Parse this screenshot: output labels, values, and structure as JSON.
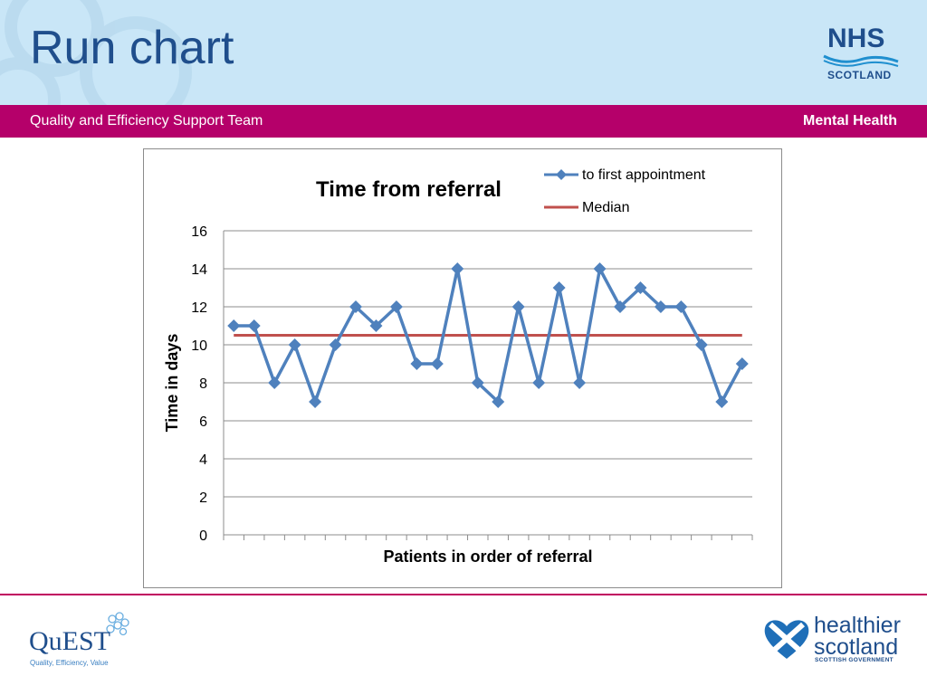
{
  "slide": {
    "title": "Run chart",
    "bar_left": "Quality and Efficiency Support Team",
    "bar_right": "Mental Health"
  },
  "logos": {
    "nhs_word": "NHS",
    "nhs_sub": "SCOTLAND",
    "quest_word": "QuEST",
    "quest_tagline": "Quality, Efficiency, Value",
    "hs_line1": "healthier",
    "hs_line2": "scotland",
    "hs_gov": "SCOTTISH GOVERNMENT"
  },
  "colors": {
    "header_bg": "#c9e6f7",
    "title": "#1f4e8c",
    "magenta_bar": "#b5006a",
    "series_line": "#4f81bd",
    "median_line": "#c0504d"
  },
  "chart_data": {
    "type": "line",
    "title": "Time from referral",
    "xlabel": "Patients in order of referral",
    "ylabel": "Time in days",
    "ylim": [
      0,
      16
    ],
    "yticks": [
      0,
      2,
      4,
      6,
      8,
      10,
      12,
      14,
      16
    ],
    "grid": true,
    "legend_position": "top-right",
    "series": [
      {
        "name": "to first appointment",
        "marker": "diamond",
        "values": [
          11,
          11,
          8,
          10,
          7,
          10,
          12,
          11,
          12,
          9,
          9,
          14,
          8,
          7,
          12,
          8,
          13,
          8,
          14,
          12,
          13,
          12,
          12,
          10,
          7,
          9
        ]
      },
      {
        "name": "Median",
        "constant": 10.5
      }
    ]
  }
}
